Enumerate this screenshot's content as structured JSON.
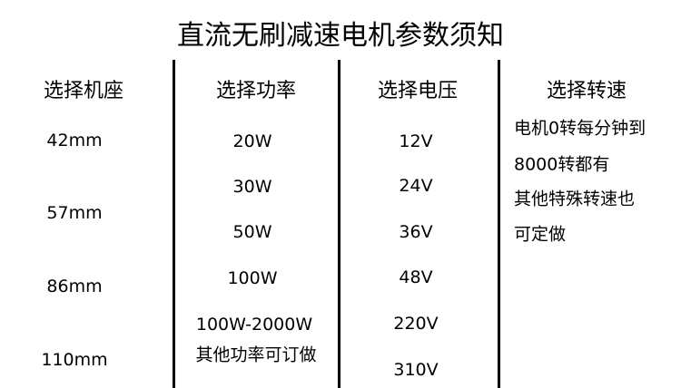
{
  "title": "直流无刷减速电机参数须知",
  "columns": [
    {
      "header": "选择机座",
      "items": [
        "42mm",
        "57mm",
        "86mm",
        "110mm"
      ]
    },
    {
      "header": "选择功率",
      "items": [
        "20W",
        "30W",
        "50W",
        "100W",
        "100W-2000W",
        "其他功率可订做"
      ]
    },
    {
      "header": "选择电压",
      "items": [
        "12V",
        "24V",
        "36V",
        "48V",
        "220V",
        "310V"
      ]
    },
    {
      "header": "选择转速",
      "items": [
        "电机0转每分钟到",
        "8000转都有",
        "其他特殊转速也",
        "可定做"
      ]
    }
  ]
}
